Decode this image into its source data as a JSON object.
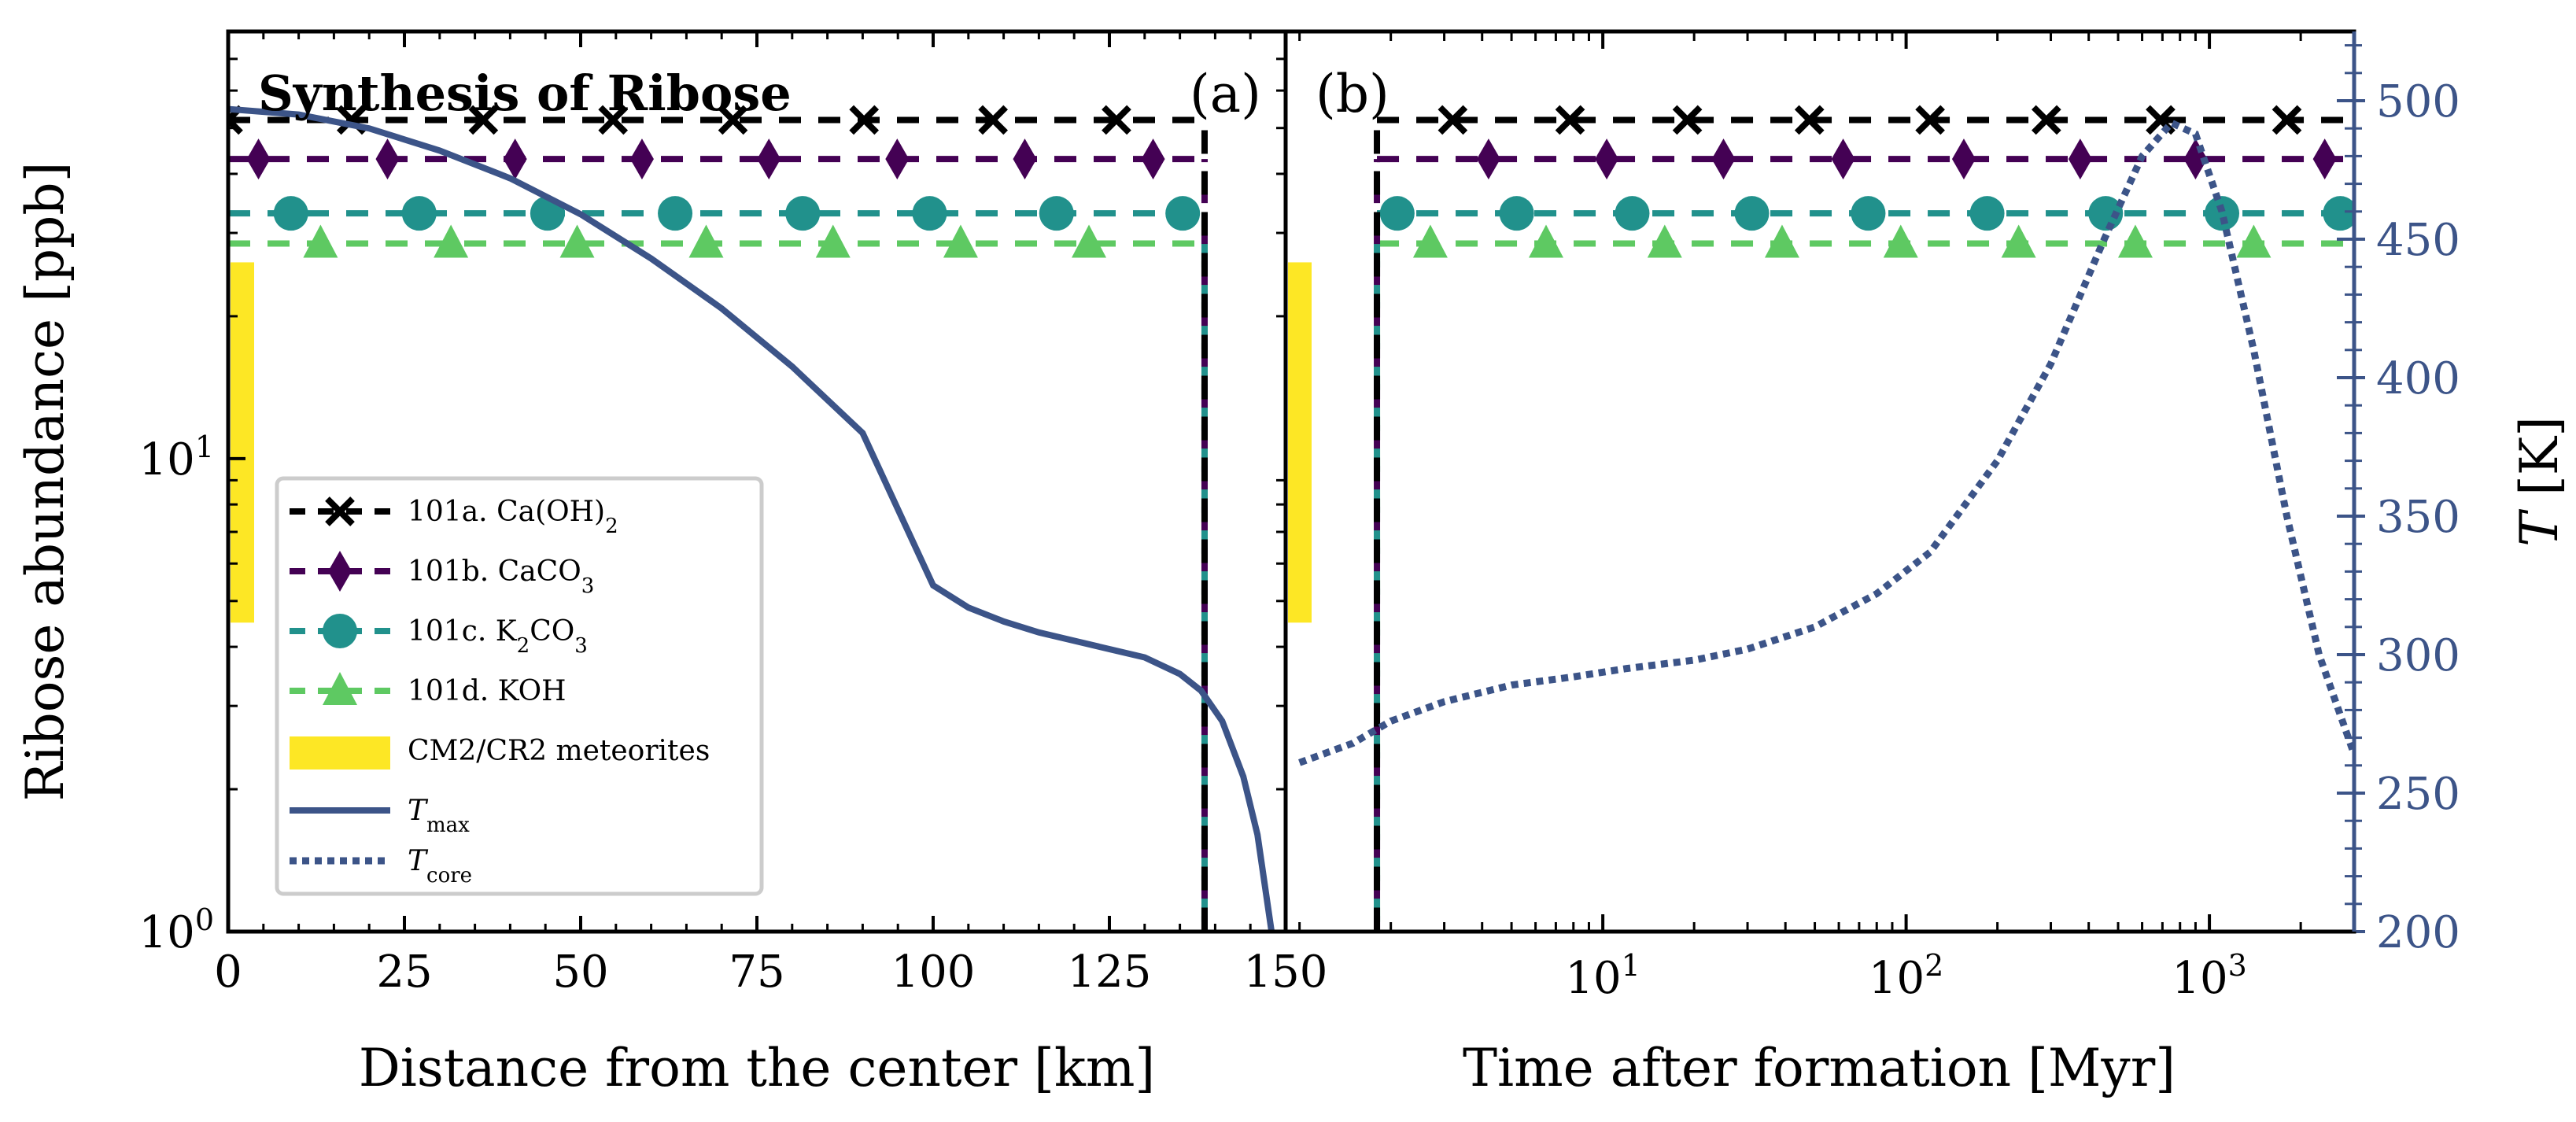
{
  "figure_title": "Synthesis of Ribose",
  "colors": {
    "Ca(OH)2": "#000000",
    "CaCO3": "#440154",
    "K2CO3": "#21918c",
    "KOH": "#5ec962",
    "meteorite": "#fde725",
    "temperature": "#3c5488"
  },
  "chart_data": [
    {
      "panel_label": "(a)",
      "type": "line",
      "title": "Synthesis of Ribose",
      "xlabel": "Distance from the center [km]",
      "ylabel": "Ribose abundance [ppb]",
      "yscale": "log",
      "xlim": [
        0,
        150
      ],
      "ylim": [
        1,
        80
      ],
      "xticks": [
        0,
        25,
        50,
        75,
        100,
        125,
        150
      ],
      "xtick_labels": [
        "0",
        "25",
        "50",
        "75",
        "100",
        "125",
        "150"
      ],
      "ytick_labels": [
        {
          "base": "10",
          "exp": "0",
          "value": 1
        },
        {
          "base": "10",
          "exp": "1",
          "value": 10
        }
      ],
      "series": [
        {
          "name": "101a. Ca(OH)2",
          "marker": "x",
          "abundance_ppb": 52,
          "x_range": [
            0,
            138
          ]
        },
        {
          "name": "101b. CaCO3",
          "marker": "diamond",
          "abundance_ppb": 43,
          "x_range": [
            0,
            138
          ]
        },
        {
          "name": "101c. K2CO3",
          "marker": "circle",
          "abundance_ppb": 33,
          "x_range": [
            0,
            138
          ]
        },
        {
          "name": "101d. KOH",
          "marker": "triangle",
          "abundance_ppb": 28.5,
          "x_range": [
            0,
            138
          ]
        }
      ],
      "markers_x_km": {
        "101a. Ca(OH)2": [
          0,
          17.5,
          36.2,
          54.6,
          71.6,
          90.2,
          108.5,
          126
        ],
        "101b. CaCO3": [
          4.3,
          22.6,
          40.7,
          58.7,
          76.7,
          94.9,
          113,
          131.2
        ],
        "101c. K2CO3": [
          8.9,
          27.1,
          45.3,
          63.4,
          81.5,
          99.5,
          117.5,
          135.4
        ],
        "101d. KOH": [
          13.1,
          31.6,
          49.5,
          67.8,
          85.8,
          103.9,
          122.1
        ]
      },
      "vertical_line_x_km": 138.5,
      "meteorite_range_ppb": [
        4.5,
        26
      ],
      "temperature_curve": {
        "name": "T_max",
        "style": "solid",
        "x_km": [
          0,
          10,
          20,
          30,
          40,
          50,
          60,
          70,
          80,
          90,
          100,
          105,
          110,
          115,
          120,
          125,
          130,
          135,
          138,
          141,
          144,
          146,
          148
        ],
        "T_K": [
          497,
          495,
          490,
          482,
          472,
          459,
          443,
          425,
          404,
          380,
          325,
          317,
          312,
          308,
          305,
          302,
          299,
          293,
          287,
          276,
          256,
          235,
          200
        ]
      }
    },
    {
      "panel_label": "(b)",
      "type": "line",
      "xlabel": "Time after formation [Myr]",
      "ylabel_right": "T [K]",
      "xscale": "log",
      "xlim": [
        0.9,
        3000
      ],
      "xtick_labels": [
        {
          "base": "10",
          "exp": "1",
          "value": 10
        },
        {
          "base": "10",
          "exp": "2",
          "value": 100
        },
        {
          "base": "10",
          "exp": "3",
          "value": 1000
        }
      ],
      "ylim_right_K": [
        200,
        525
      ],
      "right_ticks_K": [
        200,
        250,
        300,
        350,
        400,
        450,
        500
      ],
      "series": [
        {
          "name": "101a. Ca(OH)2",
          "marker": "x",
          "abundance_ppb": 52,
          "x_start_myr": 1.8
        },
        {
          "name": "101b. CaCO3",
          "marker": "diamond",
          "abundance_ppb": 43,
          "x_start_myr": 1.8
        },
        {
          "name": "101c. K2CO3",
          "marker": "circle",
          "abundance_ppb": 33,
          "x_start_myr": 1.8
        },
        {
          "name": "101d. KOH",
          "marker": "triangle",
          "abundance_ppb": 28.5,
          "x_start_myr": 1.8
        }
      ],
      "markers_x_myr": {
        "101a. Ca(OH)2": [
          3.2,
          7.8,
          19,
          48,
          120,
          290,
          690,
          1800
        ],
        "101b. CaCO3": [
          4.2,
          10.3,
          25,
          62,
          155,
          375,
          900,
          2400
        ],
        "101c. K2CO3": [
          2.1,
          5.2,
          12.5,
          31,
          75,
          185,
          455,
          1100,
          2700
        ],
        "101d. KOH": [
          2.7,
          6.5,
          16,
          39,
          96,
          235,
          570,
          1400
        ]
      },
      "vertical_line_x_myr": 1.8,
      "meteorite_range_ppb": [
        4.5,
        26
      ],
      "temperature_curve": {
        "name": "T_core",
        "style": "dotted",
        "x_myr": [
          1,
          1.5,
          2,
          3,
          5,
          8,
          12,
          20,
          30,
          50,
          80,
          120,
          200,
          300,
          450,
          600,
          750,
          900,
          1100,
          1400,
          1800,
          2300,
          3000
        ],
        "T_K": [
          261,
          268,
          276,
          283,
          289,
          292,
          295,
          298,
          302,
          310,
          322,
          337,
          370,
          405,
          450,
          480,
          492,
          488,
          460,
          410,
          350,
          300,
          264
        ]
      }
    }
  ],
  "legend": [
    {
      "key": "101a",
      "label": "101a. Ca(OH)",
      "sub": "2"
    },
    {
      "key": "101b",
      "label": "101b. CaCO",
      "sub": "3"
    },
    {
      "key": "101c",
      "label": "101c. K",
      "sub": "2",
      "tail": "CO",
      "sub2": "3"
    },
    {
      "key": "101d",
      "label": "101d. KOH"
    },
    {
      "key": "met",
      "label": "CM2/CR2 meteorites"
    },
    {
      "key": "tmax",
      "label": "T",
      "sub": "max"
    },
    {
      "key": "tcore",
      "label": "T",
      "sub": "core"
    }
  ]
}
